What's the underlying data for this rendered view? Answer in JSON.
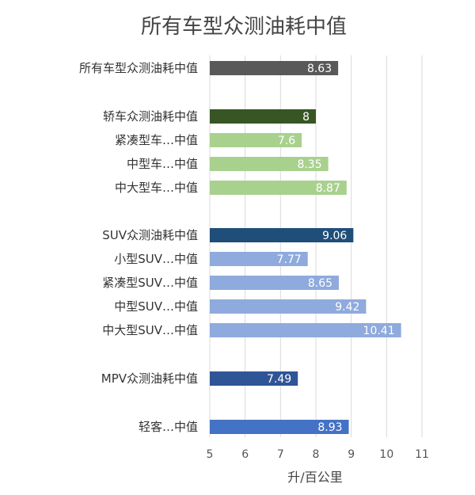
{
  "chart_data": {
    "type": "bar",
    "orientation": "horizontal",
    "title": "所有车型众测油耗中值",
    "xlabel": "升/百公里",
    "ylabel": "",
    "xlim": [
      5,
      11
    ],
    "xticks": [
      "5",
      "6",
      "7",
      "8",
      "9",
      "10",
      "11"
    ],
    "grid": "vertical",
    "categories": [
      "所有车型众测油耗中值",
      "轿车众测油耗中值",
      "紧凑型车…中值",
      "中型车…中值",
      "中大型车…中值",
      "SUV众测油耗中值",
      "小型SUV…中值",
      "紧凑型SUV…中值",
      "中型SUV…中值",
      "中大型SUV…中值",
      "MPV众测油耗中值",
      "轻客…中值"
    ],
    "values": [
      8.63,
      8,
      7.6,
      8.35,
      8.87,
      9.06,
      7.77,
      8.65,
      9.42,
      10.41,
      7.49,
      8.93
    ],
    "value_labels": [
      "8.63",
      "8",
      "7.6",
      "8.35",
      "8.87",
      "9.06",
      "7.77",
      "8.65",
      "9.42",
      "10.41",
      "7.49",
      "8.93"
    ],
    "colors": [
      "#595959",
      "#375623",
      "#a9d18e",
      "#a9d18e",
      "#a9d18e",
      "#1f4e79",
      "#8faadc",
      "#8faadc",
      "#8faadc",
      "#8faadc",
      "#2f5597",
      "#4472c4"
    ]
  }
}
